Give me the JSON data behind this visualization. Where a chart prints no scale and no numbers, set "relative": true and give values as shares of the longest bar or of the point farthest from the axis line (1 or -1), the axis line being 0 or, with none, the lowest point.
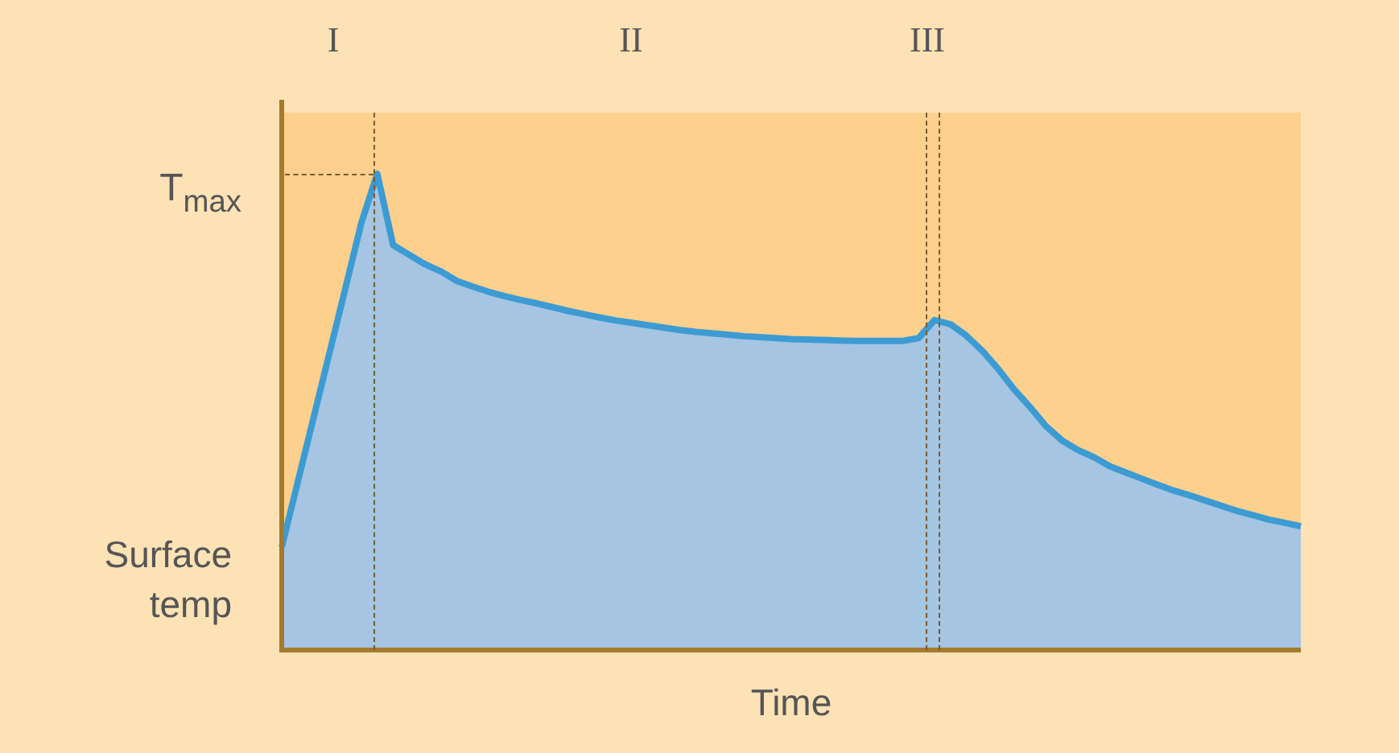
{
  "chart_data": {
    "type": "area",
    "relative": true,
    "xlabel": "Time",
    "grid": false,
    "legend": false,
    "marker": "none",
    "categories": [
      null,
      null,
      null,
      null,
      null,
      null,
      null,
      null,
      null,
      null,
      null,
      null,
      null,
      null,
      null,
      null,
      null,
      null,
      null,
      null,
      null,
      null,
      null,
      null,
      null,
      null,
      null,
      null,
      null,
      null,
      null,
      null,
      null,
      null,
      null,
      null,
      null,
      null,
      null,
      null,
      null,
      null,
      null,
      null,
      null,
      null,
      null,
      null,
      null,
      null,
      null,
      null,
      null,
      null,
      null,
      null,
      null,
      null,
      null,
      null,
      null,
      null,
      null,
      null,
      null
    ],
    "series": [
      {
        "color": "#3d9bd3",
        "values": [
          0.216,
          0.352,
          0.488,
          0.624,
          0.76,
          0.897,
          1.0,
          0.85,
          0.83,
          0.81,
          0.795,
          0.775,
          0.763,
          0.752,
          0.743,
          0.735,
          0.728,
          0.72,
          0.712,
          0.705,
          0.698,
          0.692,
          0.687,
          0.682,
          0.677,
          0.672,
          0.668,
          0.665,
          0.662,
          0.659,
          0.657,
          0.655,
          0.653,
          0.652,
          0.651,
          0.65,
          0.649,
          0.649,
          0.649,
          0.649,
          0.655,
          0.693,
          0.684,
          0.66,
          0.628,
          0.59,
          0.547,
          0.51,
          0.47,
          0.44,
          0.42,
          0.405,
          0.386,
          0.373,
          0.36,
          0.347,
          0.335,
          0.325,
          0.314,
          0.303,
          0.292,
          0.283,
          0.274,
          0.267,
          0.26
        ]
      }
    ],
    "annotations": [
      "I",
      "II",
      "III",
      "T$_{max}$",
      "Surface temp"
    ]
  }
}
